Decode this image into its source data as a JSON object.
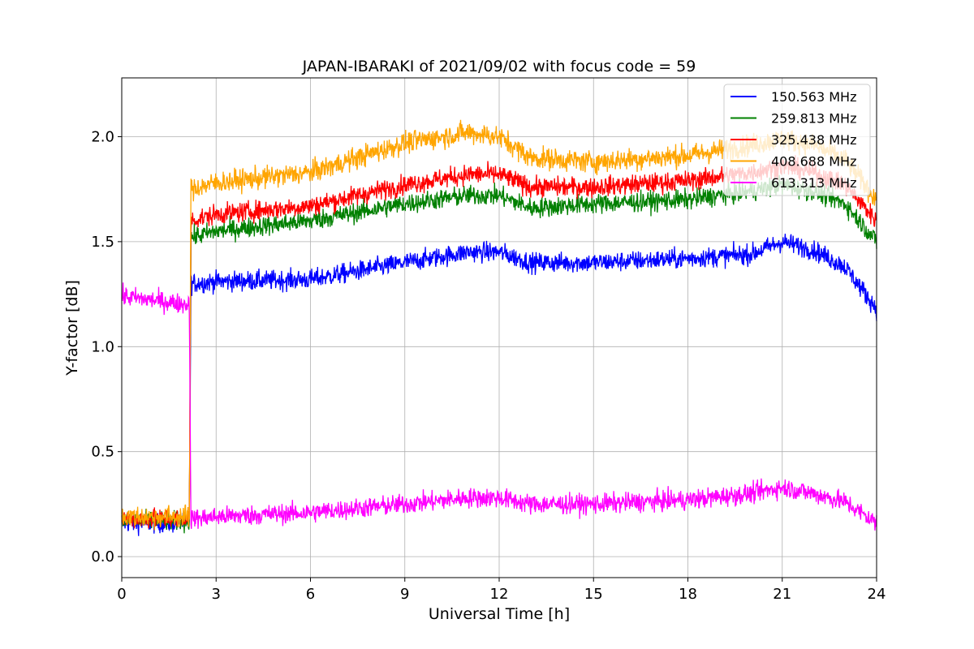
{
  "chart_data": {
    "type": "line",
    "title": "JAPAN-IBARAKI of 2021/09/02 with focus code = 59",
    "xlabel": "Universal Time [h]",
    "ylabel": "Y-factor [dB]",
    "xlim": [
      0,
      24
    ],
    "ylim": [
      -0.1,
      2.28
    ],
    "xticks": [
      0,
      3,
      6,
      9,
      12,
      15,
      18,
      21,
      24
    ],
    "xtick_labels": [
      "0",
      "3",
      "6",
      "9",
      "12",
      "15",
      "18",
      "21",
      "24"
    ],
    "yticks": [
      0.0,
      0.5,
      1.0,
      1.5,
      2.0
    ],
    "ytick_labels": [
      "0.0",
      "0.5",
      "1.0",
      "1.5",
      "2.0"
    ],
    "grid": true,
    "legend_position": "top-right",
    "series": [
      {
        "name": "150.563 MHz",
        "color": "#0000ff",
        "noise": 0.045,
        "x": [
          0,
          2.15,
          2.2,
          3,
          6,
          9,
          11,
          12,
          13,
          15,
          18,
          20,
          21,
          22,
          23,
          24
        ],
        "y": [
          0.16,
          0.16,
          1.3,
          1.31,
          1.32,
          1.4,
          1.45,
          1.45,
          1.4,
          1.4,
          1.42,
          1.44,
          1.5,
          1.46,
          1.38,
          1.18
        ]
      },
      {
        "name": "259.813 MHz",
        "color": "#008000",
        "noise": 0.045,
        "x": [
          0,
          2.15,
          2.2,
          3,
          6,
          9,
          11,
          12,
          13,
          15,
          18,
          20,
          21,
          22,
          23,
          24
        ],
        "y": [
          0.17,
          0.17,
          1.52,
          1.55,
          1.6,
          1.68,
          1.72,
          1.72,
          1.66,
          1.68,
          1.7,
          1.74,
          1.77,
          1.74,
          1.68,
          1.5
        ]
      },
      {
        "name": "325.438 MHz",
        "color": "#ff0000",
        "noise": 0.045,
        "x": [
          0,
          2.15,
          2.2,
          3,
          6,
          9,
          11,
          12,
          13,
          15,
          18,
          20,
          21,
          22,
          23,
          24
        ],
        "y": [
          0.18,
          0.18,
          1.6,
          1.63,
          1.67,
          1.77,
          1.82,
          1.82,
          1.76,
          1.76,
          1.79,
          1.83,
          1.86,
          1.83,
          1.77,
          1.6
        ]
      },
      {
        "name": "408.688 MHz",
        "color": "#ffa500",
        "noise": 0.05,
        "x": [
          0,
          2.15,
          2.2,
          3,
          6,
          9,
          11,
          12,
          13,
          15,
          18,
          20,
          21,
          22,
          23,
          24
        ],
        "y": [
          0.19,
          0.19,
          1.75,
          1.78,
          1.83,
          1.97,
          2.02,
          2.0,
          1.9,
          1.88,
          1.91,
          1.96,
          1.99,
          1.96,
          1.89,
          1.7
        ]
      },
      {
        "name": "613.313 MHz",
        "color": "#ff00ff",
        "noise": 0.045,
        "x": [
          0,
          2.15,
          2.2,
          3,
          6,
          9,
          11,
          12,
          13,
          15,
          18,
          20,
          21,
          22,
          23,
          24
        ],
        "y": [
          1.24,
          1.2,
          0.18,
          0.19,
          0.21,
          0.25,
          0.28,
          0.28,
          0.25,
          0.25,
          0.27,
          0.3,
          0.33,
          0.3,
          0.26,
          0.16
        ]
      }
    ]
  }
}
